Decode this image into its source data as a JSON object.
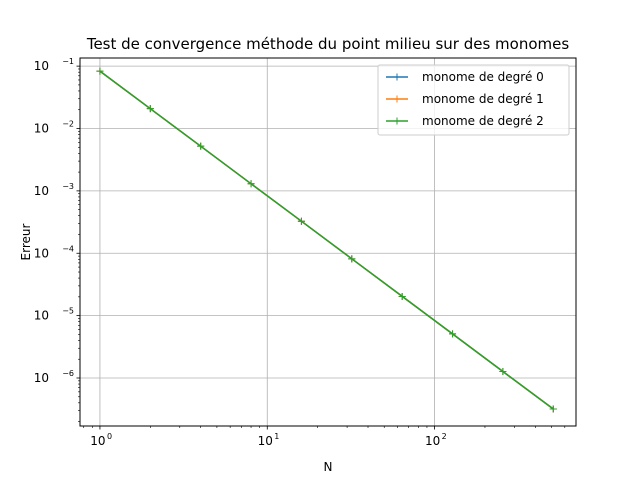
{
  "chart_data": {
    "type": "line",
    "title": "Test de convergence méthode du point milieu sur des monomes",
    "xlabel": "N",
    "ylabel": "Erreur",
    "xscale": "log",
    "yscale": "log",
    "xlim": [
      0.76,
      700
    ],
    "ylim": [
      1.7e-07,
      0.135
    ],
    "grid": true,
    "legend_position": "top-right",
    "x_ticks": [
      {
        "value": 1,
        "base": "10",
        "exp": "0"
      },
      {
        "value": 10,
        "base": "10",
        "exp": "1"
      },
      {
        "value": 100,
        "base": "10",
        "exp": "2"
      }
    ],
    "y_ticks": [
      {
        "value": 1e-06,
        "base": "10",
        "exp": "−6"
      },
      {
        "value": 1e-05,
        "base": "10",
        "exp": "−5"
      },
      {
        "value": 0.0001,
        "base": "10",
        "exp": "−4"
      },
      {
        "value": 0.001,
        "base": "10",
        "exp": "−3"
      },
      {
        "value": 0.01,
        "base": "10",
        "exp": "−2"
      },
      {
        "value": 0.1,
        "base": "10",
        "exp": "−1"
      }
    ],
    "x": [
      1,
      2,
      4,
      8,
      16,
      32,
      64,
      128,
      256,
      512
    ],
    "series": [
      {
        "name": "monome de degré 0",
        "color": "#1f77b4",
        "marker": "+",
        "values": [
          0.0833,
          0.0208,
          0.00521,
          0.0013,
          0.000326,
          8.14e-05,
          2.03e-05,
          5.09e-06,
          1.27e-06,
          3.18e-07
        ]
      },
      {
        "name": "monome de degré 1",
        "color": "#ff7f0e",
        "marker": "+",
        "values": [
          0.0833,
          0.0208,
          0.00521,
          0.0013,
          0.000326,
          8.14e-05,
          2.03e-05,
          5.09e-06,
          1.27e-06,
          3.18e-07
        ]
      },
      {
        "name": "monome de degré 2",
        "color": "#2ca02c",
        "marker": "+",
        "values": [
          0.0833,
          0.0208,
          0.00521,
          0.0013,
          0.000326,
          8.14e-05,
          2.03e-05,
          5.09e-06,
          1.27e-06,
          3.18e-07
        ]
      }
    ]
  }
}
